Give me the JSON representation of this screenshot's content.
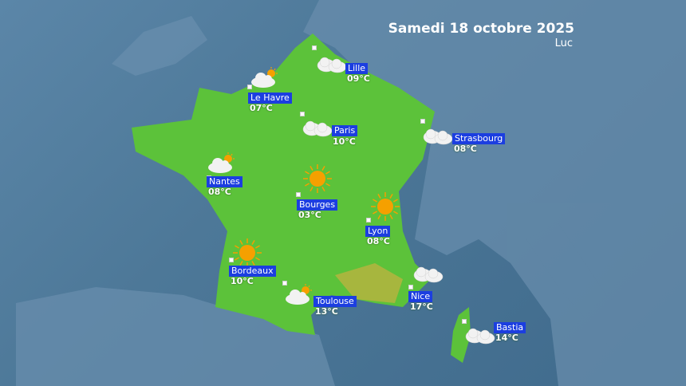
{
  "header": {
    "date": "Samedi 18 octobre 2025",
    "presenter": "Luc"
  },
  "colors": {
    "land": "#5cc23a",
    "label_bg": "#1c3ee0",
    "sea": "#4d7898",
    "sun": "#f5a000"
  },
  "cities": [
    {
      "name": "Lille",
      "temp": "09°C",
      "icon": "cloud-icon"
    },
    {
      "name": "Le Havre",
      "temp": "07°C",
      "icon": "partly-cloudy-icon"
    },
    {
      "name": "Paris",
      "temp": "10°C",
      "icon": "cloud-icon"
    },
    {
      "name": "Strasbourg",
      "temp": "08°C",
      "icon": "cloud-icon"
    },
    {
      "name": "Nantes",
      "temp": "08°C",
      "icon": "partly-cloudy-icon"
    },
    {
      "name": "Bourges",
      "temp": "03°C",
      "icon": "sun-icon"
    },
    {
      "name": "Lyon",
      "temp": "08°C",
      "icon": "sun-icon"
    },
    {
      "name": "Bordeaux",
      "temp": "10°C",
      "icon": "sun-icon"
    },
    {
      "name": "Toulouse",
      "temp": "13°C",
      "icon": "partly-cloudy-icon"
    },
    {
      "name": "Nice",
      "temp": "17°C",
      "icon": "cloud-icon"
    },
    {
      "name": "Bastia",
      "temp": "14°C",
      "icon": "cloud-icon"
    }
  ]
}
